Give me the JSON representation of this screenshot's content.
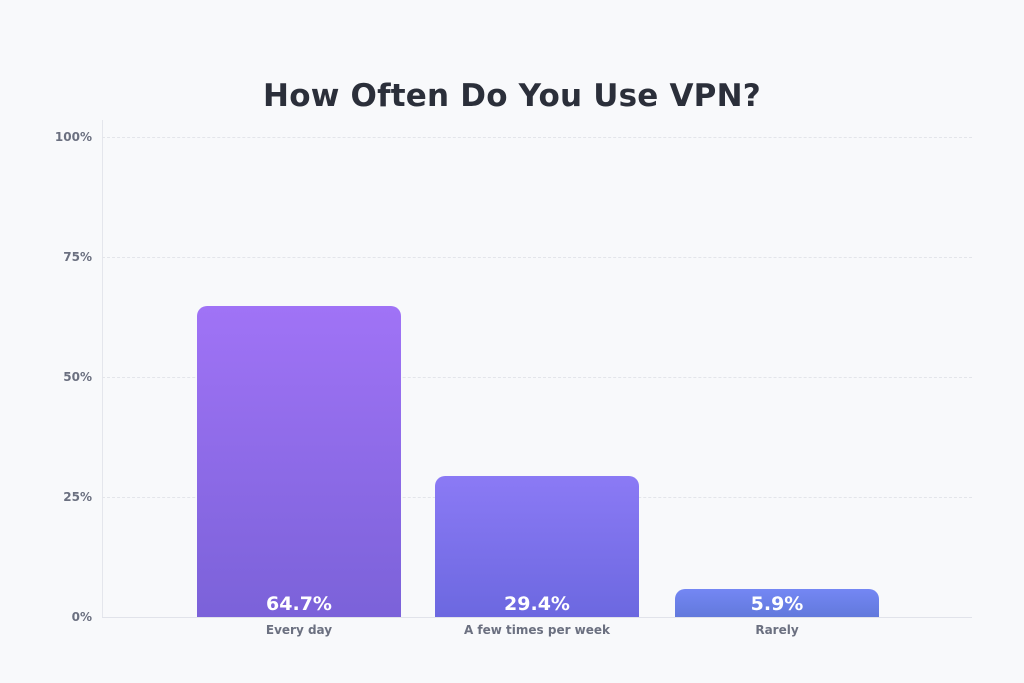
{
  "chart_data": {
    "type": "bar",
    "title": "How Often Do You Use VPN?",
    "categories": [
      "Every day",
      "A few times per week",
      "Rarely"
    ],
    "values": [
      64.7,
      29.4,
      5.9
    ],
    "value_labels": [
      "64.7%",
      "29.4%",
      "5.9%"
    ],
    "xlabel": "",
    "ylabel": "",
    "ylim": [
      0,
      100
    ],
    "yticks": [
      "0%",
      "25%",
      "50%",
      "75%",
      "100%"
    ],
    "grid": true,
    "legend": null,
    "colors": [
      {
        "top": "#a073f6",
        "bottom": "#7b62d9"
      },
      {
        "top": "#8b7af5",
        "bottom": "#6c68e0"
      },
      {
        "top": "#7487f4",
        "bottom": "#6279dc"
      }
    ]
  }
}
